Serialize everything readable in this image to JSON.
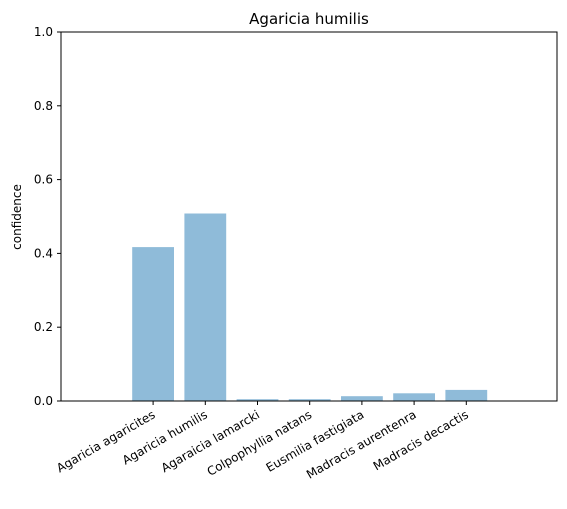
{
  "chart_data": {
    "type": "bar",
    "title": "Agaricia humilis",
    "xlabel": "",
    "ylabel": "confidence",
    "categories": [
      "Agaricia agaricites",
      "Agaricia humilis",
      "Agaraicia lamarcki",
      "Colpophyllia natans",
      "Eusmilia fastigiata",
      "Madracis aurentenra",
      "Madracis decactis"
    ],
    "values": [
      0.417,
      0.508,
      0.005,
      0.005,
      0.013,
      0.021,
      0.03
    ],
    "ylim": [
      0,
      1.0
    ],
    "yticks": [
      0.0,
      0.2,
      0.4,
      0.6,
      0.8,
      1.0
    ],
    "ytick_labels": [
      "0.0",
      "0.2",
      "0.4",
      "0.6",
      "0.8",
      "1.0"
    ],
    "bar_color": "#8fbbd9",
    "grid": false,
    "legend": "none"
  }
}
